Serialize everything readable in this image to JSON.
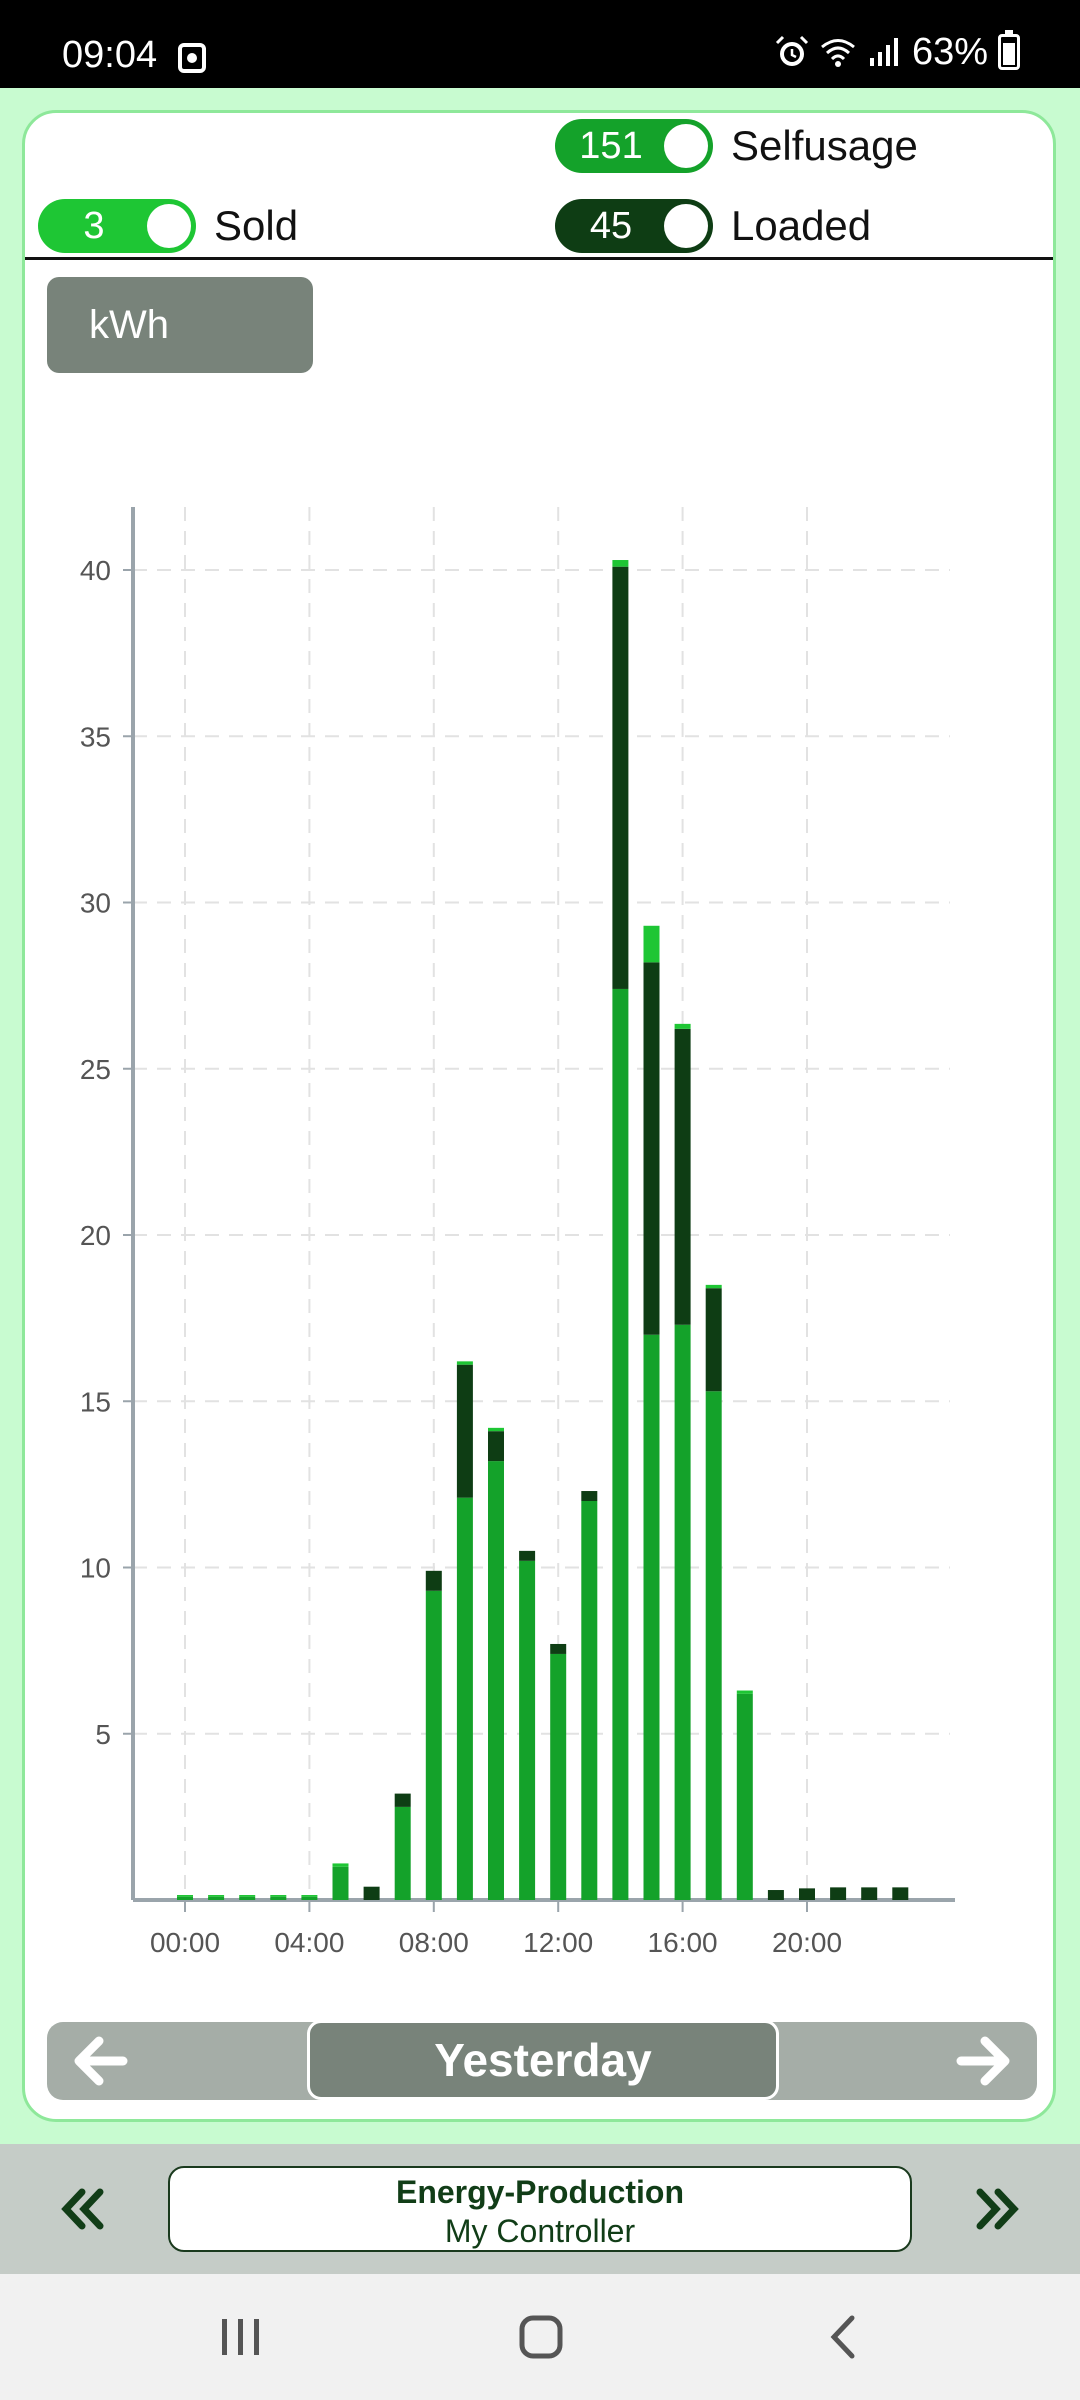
{
  "status_bar": {
    "time": "09:04",
    "battery": "63%"
  },
  "toggles": {
    "selfusage": {
      "value": "151",
      "label": "Selfusage"
    },
    "sold": {
      "value": "3",
      "label": "Sold"
    },
    "loaded": {
      "value": "45",
      "label": "Loaded"
    }
  },
  "unit_button": "kWh",
  "colors": {
    "selfusage": "#14a22a",
    "loaded": "#0e3d14",
    "sold": "#1ec634"
  },
  "chart_data": {
    "type": "bar",
    "stacked": true,
    "x": [
      0,
      1,
      2,
      3,
      4,
      5,
      6,
      7,
      8,
      9,
      10,
      11,
      12,
      13,
      14,
      15,
      16,
      17,
      18,
      19,
      20,
      21,
      22,
      23
    ],
    "x_tick_labels": [
      "00:00",
      "04:00",
      "08:00",
      "12:00",
      "16:00",
      "20:00"
    ],
    "x_tick_values": [
      0,
      4,
      8,
      12,
      16,
      20
    ],
    "y_ticks": [
      5,
      10,
      15,
      20,
      25,
      30,
      35,
      40
    ],
    "ylim": [
      0,
      42
    ],
    "grid": true,
    "series": [
      {
        "key": "selfusage",
        "values": [
          0.1,
          0.1,
          0.1,
          0.1,
          0.1,
          1.0,
          0,
          2.8,
          9.3,
          12.1,
          13.2,
          10.2,
          7.4,
          12.0,
          27.4,
          17.0,
          17.3,
          15.3,
          6.2,
          0,
          0,
          0,
          0,
          0
        ]
      },
      {
        "key": "loaded",
        "values": [
          0,
          0,
          0,
          0,
          0,
          0,
          0.4,
          0.4,
          0.6,
          4.0,
          0.9,
          0.3,
          0.3,
          0.3,
          12.7,
          11.2,
          8.9,
          3.1,
          0,
          0.3,
          0.35,
          0.38,
          0.38,
          0.38
        ]
      },
      {
        "key": "sold",
        "values": [
          0.05,
          0.05,
          0.05,
          0.05,
          0.05,
          0.1,
          0,
          0,
          0,
          0.1,
          0.1,
          0,
          0,
          0,
          0.2,
          1.1,
          0.15,
          0.1,
          0.1,
          0,
          0,
          0,
          0,
          0
        ]
      }
    ]
  },
  "nav": {
    "period": "Yesterday"
  },
  "footer": {
    "title": "Energy-Production",
    "subtitle": "My Controller"
  }
}
